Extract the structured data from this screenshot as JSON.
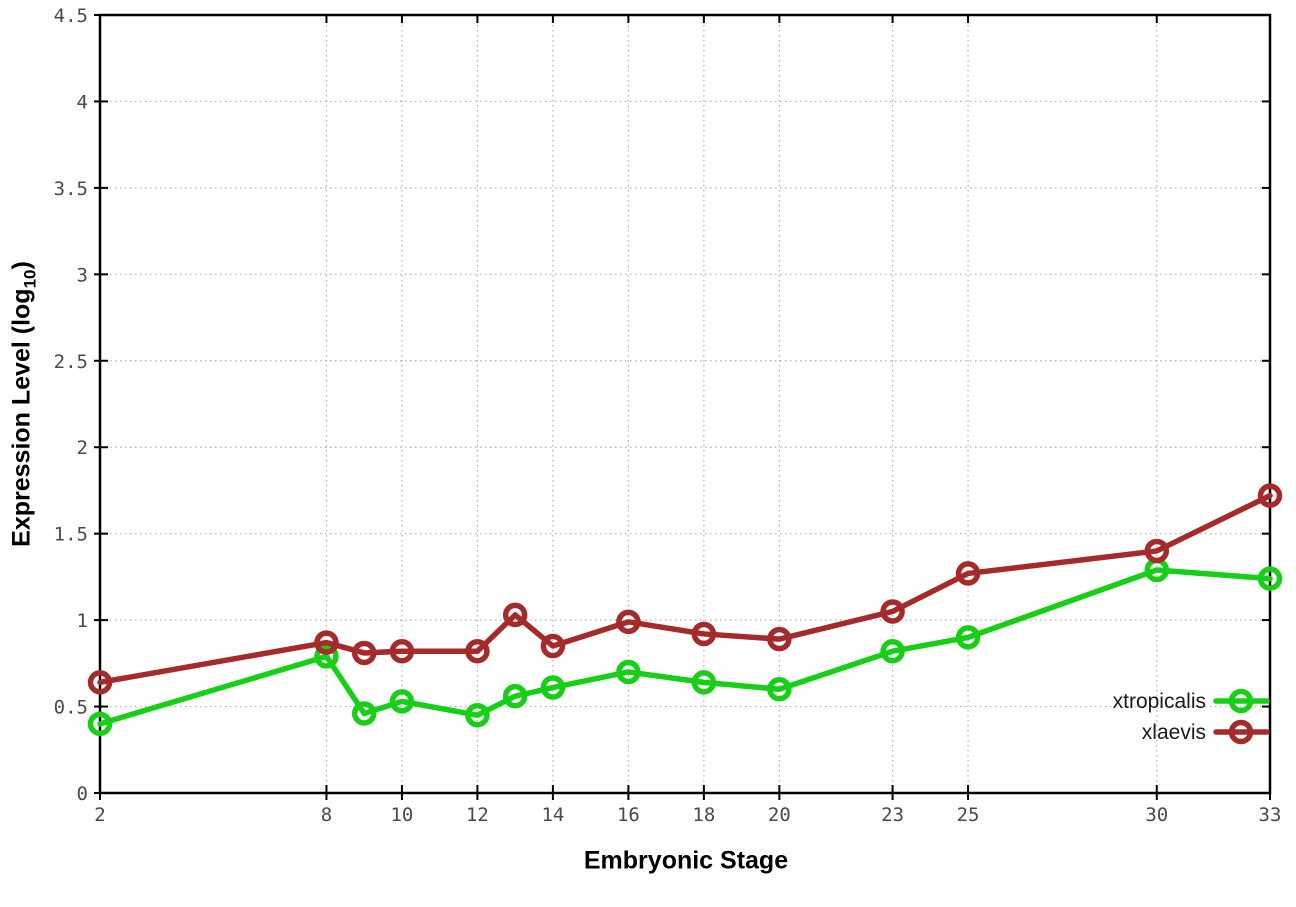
{
  "chart_data": {
    "type": "line",
    "x": [
      2,
      8,
      9,
      10,
      12,
      13,
      14,
      16,
      18,
      20,
      23,
      25,
      30,
      33
    ],
    "series": [
      {
        "name": "xtropicalis",
        "color": "#17cf17",
        "values": [
          0.4,
          0.79,
          0.46,
          0.53,
          0.45,
          0.56,
          0.61,
          0.7,
          0.64,
          0.6,
          0.82,
          0.9,
          1.29,
          1.24
        ]
      },
      {
        "name": "xlaevis",
        "color": "#a52a2a",
        "values": [
          0.64,
          0.87,
          0.81,
          0.82,
          0.82,
          1.03,
          0.85,
          0.99,
          0.92,
          0.89,
          1.05,
          1.27,
          1.4,
          1.72
        ]
      }
    ],
    "title": "",
    "xlabel": "Embryonic Stage",
    "ylabel": "Expression Level (log10)",
    "xlim": [
      2,
      33
    ],
    "ylim": [
      0,
      4.5
    ],
    "xtick_values": [
      2,
      8,
      10,
      12,
      14,
      16,
      18,
      20,
      23,
      25,
      30,
      33
    ],
    "xtick_labels": [
      "2",
      "8",
      "10",
      "12",
      "14",
      "16",
      "18",
      "20",
      "23",
      "25",
      "30",
      "33"
    ],
    "ytick_values": [
      0,
      0.5,
      1,
      1.5,
      2,
      2.5,
      3,
      3.5,
      4,
      4.5
    ],
    "ytick_labels": [
      "0",
      "0.5",
      "1",
      "1.5",
      "2",
      "2.5",
      "3",
      "3.5",
      "4",
      "4.5"
    ],
    "grid": true,
    "grid_color": "#b0b0b0",
    "border_color": "#000000",
    "legend_position": "bottom-right"
  },
  "axes": {
    "xlabel": "Embryonic Stage",
    "ylabel_main": "Expression Level (log",
    "ylabel_sub": "10",
    "ylabel_close": ")"
  },
  "legend": {
    "items": [
      {
        "label": "xtropicalis",
        "color": "#17cf17"
      },
      {
        "label": "xlaevis",
        "color": "#a52a2a"
      }
    ]
  }
}
